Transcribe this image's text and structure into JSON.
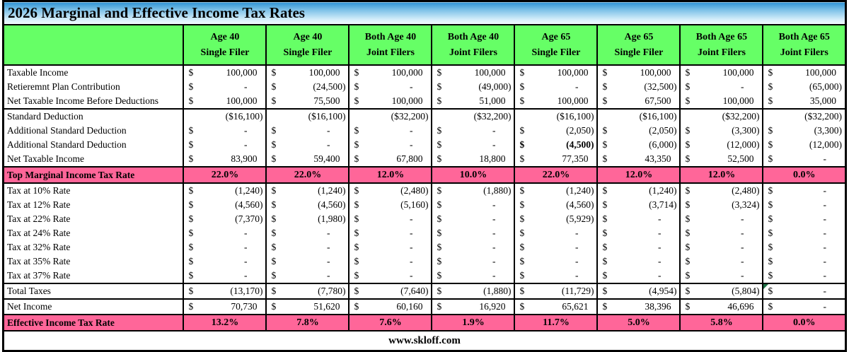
{
  "title": "2026 Marginal and Effective Income Tax Rates",
  "footer": "www.skloff.com",
  "colors": {
    "header_green": "#66FF66",
    "rate_pink": "#FF6699",
    "title_blue": "#2E93D4",
    "triangle_green": "#1E7145",
    "border_black": "#000000"
  },
  "columns": [
    {
      "line1": "Age 40",
      "line2": "Single Filer"
    },
    {
      "line1": "Age 40",
      "line2": "Single Filer"
    },
    {
      "line1": "Both Age 40",
      "line2": "Joint Filers"
    },
    {
      "line1": "Both Age 40",
      "line2": "Joint Filers"
    },
    {
      "line1": "Age 65",
      "line2": "Single Filer"
    },
    {
      "line1": "Age 65",
      "line2": "Single Filer"
    },
    {
      "line1": "Both Age 65",
      "line2": "Joint Filers"
    },
    {
      "line1": "Both Age 65",
      "line2": "Joint Filers"
    }
  ],
  "rows": [
    {
      "label": "Taxable Income",
      "kind": "money",
      "section_start": true,
      "values": [
        "100,000",
        "100,000",
        "100,000",
        "100,000",
        "100,000",
        "100,000",
        "100,000",
        "100,000"
      ]
    },
    {
      "label": "Retieremnt Plan Contribution",
      "kind": "money",
      "values": [
        "-",
        "(24,500)",
        "-",
        "(49,000)",
        "-",
        "(32,500)",
        "-",
        "(65,000)"
      ]
    },
    {
      "label": "Net Taxable Income Before Deductions",
      "kind": "money",
      "values": [
        "100,000",
        "75,500",
        "100,000",
        "51,000",
        "100,000",
        "67,500",
        "100,000",
        "35,000"
      ]
    },
    {
      "label": "Standard Deduction",
      "kind": "plain",
      "section_start": true,
      "values": [
        "($16,100)",
        "($16,100)",
        "($32,200)",
        "($32,200)",
        "($16,100)",
        "($16,100)",
        "($32,200)",
        "($32,200)"
      ]
    },
    {
      "label": "Additional Standard Deduction",
      "kind": "money",
      "values": [
        "-",
        "-",
        "-",
        "-",
        "(2,050)",
        "(2,050)",
        "(3,300)",
        "(3,300)"
      ]
    },
    {
      "label": "Additional Standard Deduction",
      "kind": "money",
      "bold": [
        4
      ],
      "values": [
        "-",
        "-",
        "-",
        "-",
        "(4,500)",
        "(6,000)",
        "(12,000)",
        "(12,000)"
      ]
    },
    {
      "label": "Net Taxable Income",
      "kind": "money",
      "values": [
        "83,900",
        "59,400",
        "67,800",
        "18,800",
        "77,350",
        "43,350",
        "52,500",
        "-"
      ]
    },
    {
      "label": "Top Marginal Income Tax Rate",
      "kind": "rate",
      "section_start": true,
      "values": [
        "22.0%",
        "22.0%",
        "12.0%",
        "10.0%",
        "22.0%",
        "12.0%",
        "12.0%",
        "0.0%"
      ]
    },
    {
      "label": "Tax at 10% Rate",
      "kind": "money",
      "section_start": true,
      "values": [
        "(1,240)",
        "(1,240)",
        "(2,480)",
        "(1,880)",
        "(1,240)",
        "(1,240)",
        "(2,480)",
        "-"
      ]
    },
    {
      "label": "Tax at 12% Rate",
      "kind": "money",
      "values": [
        "(4,560)",
        "(4,560)",
        "(5,160)",
        "-",
        "(4,560)",
        "(3,714)",
        "(3,324)",
        "-"
      ]
    },
    {
      "label": "Tax at 22% Rate",
      "kind": "money",
      "values": [
        "(7,370)",
        "(1,980)",
        "-",
        "-",
        "(5,929)",
        "-",
        "-",
        "-"
      ]
    },
    {
      "label": "Tax at 24% Rate",
      "kind": "money",
      "values": [
        "-",
        "-",
        "-",
        "-",
        "-",
        "-",
        "-",
        "-"
      ]
    },
    {
      "label": "Tax at 32% Rate",
      "kind": "money",
      "values": [
        "-",
        "-",
        "-",
        "-",
        "-",
        "-",
        "-",
        "-"
      ]
    },
    {
      "label": "Tax at 35% Rate",
      "kind": "money",
      "values": [
        "-",
        "-",
        "-",
        "-",
        "-",
        "-",
        "-",
        "-"
      ]
    },
    {
      "label": "Tax at 37% Rate",
      "kind": "money",
      "values": [
        "-",
        "-",
        "-",
        "-",
        "-",
        "-",
        "-",
        "-"
      ]
    },
    {
      "label": "Total Taxes",
      "kind": "money",
      "section_start": true,
      "triangle": [
        7
      ],
      "values": [
        "(13,170)",
        "(7,780)",
        "(7,640)",
        "(1,880)",
        "(11,729)",
        "(4,954)",
        "(5,804)",
        "-"
      ]
    },
    {
      "label": "Net Income",
      "kind": "money",
      "section_start": true,
      "values": [
        "70,730",
        "51,620",
        "60,160",
        "16,920",
        "65,621",
        "38,396",
        "46,696",
        "-"
      ]
    },
    {
      "label": "Effective Income Tax Rate",
      "kind": "rate",
      "section_start": true,
      "values": [
        "13.2%",
        "7.8%",
        "7.6%",
        "1.9%",
        "11.7%",
        "5.0%",
        "5.8%",
        "0.0%"
      ]
    }
  ]
}
